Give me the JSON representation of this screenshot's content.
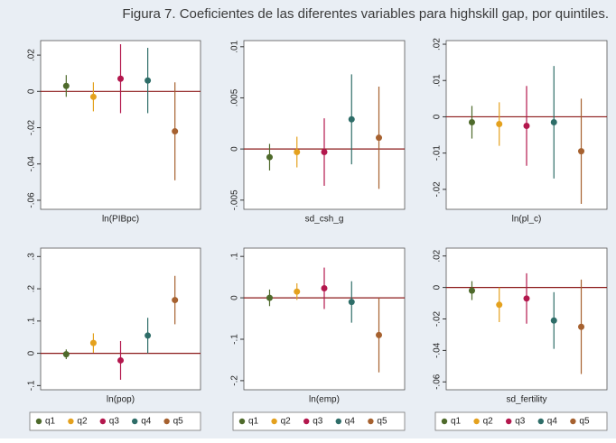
{
  "title": "Figura 7. Coeficientes de las diferentes variables para highskill gap, por quintiles.",
  "chart_data": [
    {
      "type": "errorbar",
      "xlabel": "ln(PIBpc)",
      "ylim": [
        -0.065,
        0.028
      ],
      "hline": 0,
      "yticks": [
        {
          "value": -0.06,
          "label": "-.06"
        },
        {
          "value": -0.04,
          "label": "-.04"
        },
        {
          "value": -0.02,
          "label": "-.02"
        },
        0,
        {
          "value": 0.02,
          "label": ".02"
        }
      ],
      "series": [
        {
          "name": "q1",
          "color": "#4e6a2b",
          "values": [
            0.003
          ],
          "errors": [
            0.006
          ]
        },
        {
          "name": "q2",
          "color": "#e4a11e",
          "values": [
            -0.003
          ],
          "errors": [
            0.008
          ]
        },
        {
          "name": "q3",
          "color": "#b3174d",
          "values": [
            0.007
          ],
          "errors": [
            0.019
          ]
        },
        {
          "name": "q4",
          "color": "#2e6d68",
          "values": [
            0.006
          ],
          "errors": [
            0.018
          ]
        },
        {
          "name": "q5",
          "color": "#a6612f",
          "values": [
            -0.022
          ],
          "errors": [
            0.027
          ]
        }
      ]
    },
    {
      "type": "errorbar",
      "xlabel": "sd_csh_g",
      "ylim": [
        -0.0059,
        0.0106
      ],
      "hline": 0,
      "yticks": [
        {
          "value": -0.005,
          "label": "-.005"
        },
        0,
        {
          "value": 0.005,
          "label": ".005"
        },
        {
          "value": 0.01,
          "label": ".01"
        }
      ],
      "series": [
        {
          "name": "q1",
          "color": "#4e6a2b",
          "values": [
            -0.0008
          ],
          "errors": [
            0.0013
          ]
        },
        {
          "name": "q2",
          "color": "#e4a11e",
          "values": [
            -0.0003
          ],
          "errors": [
            0.0015
          ]
        },
        {
          "name": "q3",
          "color": "#b3174d",
          "values": [
            -0.0003
          ],
          "errors": [
            0.0033
          ]
        },
        {
          "name": "q4",
          "color": "#2e6d68",
          "values": [
            0.0029
          ],
          "errors": [
            0.0044
          ]
        },
        {
          "name": "q5",
          "color": "#a6612f",
          "values": [
            0.0011
          ],
          "errors": [
            0.005
          ]
        }
      ]
    },
    {
      "type": "errorbar",
      "xlabel": "ln(pl_c)",
      "ylim": [
        -0.0255,
        0.021
      ],
      "hline": 0,
      "yticks": [
        {
          "value": -0.02,
          "label": "-.02"
        },
        {
          "value": -0.01,
          "label": "-.01"
        },
        0,
        {
          "value": 0.01,
          "label": ".01"
        },
        {
          "value": 0.02,
          "label": ".02"
        }
      ],
      "series": [
        {
          "name": "q1",
          "color": "#4e6a2b",
          "values": [
            -0.0015
          ],
          "errors": [
            0.0045
          ]
        },
        {
          "name": "q2",
          "color": "#e4a11e",
          "values": [
            -0.002
          ],
          "errors": [
            0.006
          ]
        },
        {
          "name": "q3",
          "color": "#b3174d",
          "values": [
            -0.0025
          ],
          "errors": [
            0.011
          ]
        },
        {
          "name": "q4",
          "color": "#2e6d68",
          "values": [
            -0.0015
          ],
          "errors": [
            0.0155
          ]
        },
        {
          "name": "q5",
          "color": "#a6612f",
          "values": [
            -0.0095
          ],
          "errors": [
            0.0145
          ]
        }
      ]
    },
    {
      "type": "errorbar",
      "xlabel": "ln(pop)",
      "ylim": [
        -0.113,
        0.326
      ],
      "hline": 0,
      "yticks": [
        {
          "value": -0.1,
          "label": "-.1"
        },
        0,
        {
          "value": 0.1,
          "label": ".1"
        },
        {
          "value": 0.2,
          "label": ".2"
        },
        {
          "value": 0.3,
          "label": ".3"
        }
      ],
      "series": [
        {
          "name": "q1",
          "color": "#4e6a2b",
          "values": [
            -0.003
          ],
          "errors": [
            0.015
          ]
        },
        {
          "name": "q2",
          "color": "#e4a11e",
          "values": [
            0.032
          ],
          "errors": [
            0.03
          ]
        },
        {
          "name": "q3",
          "color": "#b3174d",
          "values": [
            -0.022
          ],
          "errors": [
            0.06
          ]
        },
        {
          "name": "q4",
          "color": "#2e6d68",
          "values": [
            0.055
          ],
          "errors": [
            0.055
          ]
        },
        {
          "name": "q5",
          "color": "#a6612f",
          "values": [
            0.165
          ],
          "errors": [
            0.075
          ]
        }
      ]
    },
    {
      "type": "errorbar",
      "xlabel": "ln(emp)",
      "ylim": [
        -0.222,
        0.12
      ],
      "hline": 0,
      "yticks": [
        {
          "value": -0.2,
          "label": "-.2"
        },
        {
          "value": -0.1,
          "label": "-.1"
        },
        0,
        {
          "value": 0.1,
          "label": ".1"
        }
      ],
      "series": [
        {
          "name": "q1",
          "color": "#4e6a2b",
          "values": [
            0
          ],
          "errors": [
            0.02
          ]
        },
        {
          "name": "q2",
          "color": "#e4a11e",
          "values": [
            0.015
          ],
          "errors": [
            0.02
          ]
        },
        {
          "name": "q3",
          "color": "#b3174d",
          "values": [
            0.023
          ],
          "errors": [
            0.05
          ]
        },
        {
          "name": "q4",
          "color": "#2e6d68",
          "values": [
            -0.01
          ],
          "errors": [
            0.05
          ]
        },
        {
          "name": "q5",
          "color": "#a6612f",
          "values": [
            -0.09
          ],
          "errors": [
            0.09
          ]
        }
      ]
    },
    {
      "type": "errorbar",
      "xlabel": "sd_fertility",
      "ylim": [
        -0.065,
        0.025
      ],
      "hline": 0,
      "yticks": [
        {
          "value": -0.06,
          "label": "-.06"
        },
        {
          "value": -0.04,
          "label": "-.04"
        },
        {
          "value": -0.02,
          "label": "-.02"
        },
        0,
        {
          "value": 0.02,
          "label": ".02"
        }
      ],
      "series": [
        {
          "name": "q1",
          "color": "#4e6a2b",
          "values": [
            -0.002
          ],
          "errors": [
            0.006
          ]
        },
        {
          "name": "q2",
          "color": "#e4a11e",
          "values": [
            -0.011
          ],
          "errors": [
            0.011
          ]
        },
        {
          "name": "q3",
          "color": "#b3174d",
          "values": [
            -0.007
          ],
          "errors": [
            0.016
          ]
        },
        {
          "name": "q4",
          "color": "#2e6d68",
          "values": [
            -0.021
          ],
          "errors": [
            0.018
          ]
        },
        {
          "name": "q5",
          "color": "#a6612f",
          "values": [
            -0.025
          ],
          "errors": [
            0.03
          ]
        }
      ]
    }
  ]
}
